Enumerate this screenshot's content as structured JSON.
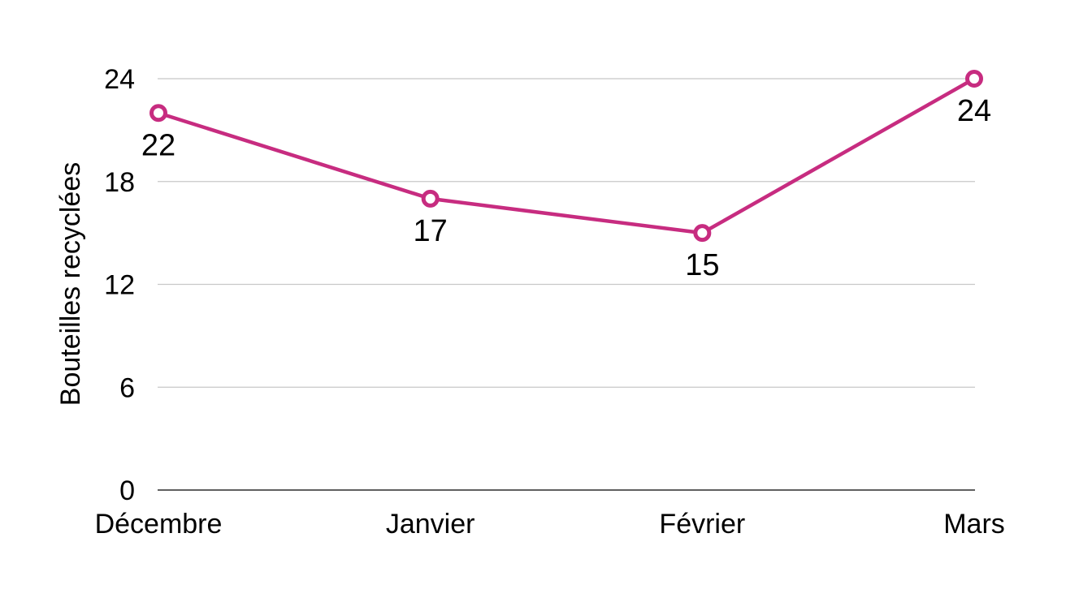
{
  "chart_data": {
    "type": "line",
    "title": "",
    "xlabel": "",
    "ylabel": "Bouteilles recyclées",
    "categories": [
      "Décembre",
      "Janvier",
      "Février",
      "Mars"
    ],
    "series": [
      {
        "values": [
          22,
          17,
          15,
          24
        ],
        "color": "#c72c80"
      }
    ],
    "ylim": [
      0,
      24
    ],
    "yticks": [
      0,
      6,
      12,
      18,
      24
    ],
    "grid": true,
    "legend": "none",
    "data_labels": true
  }
}
